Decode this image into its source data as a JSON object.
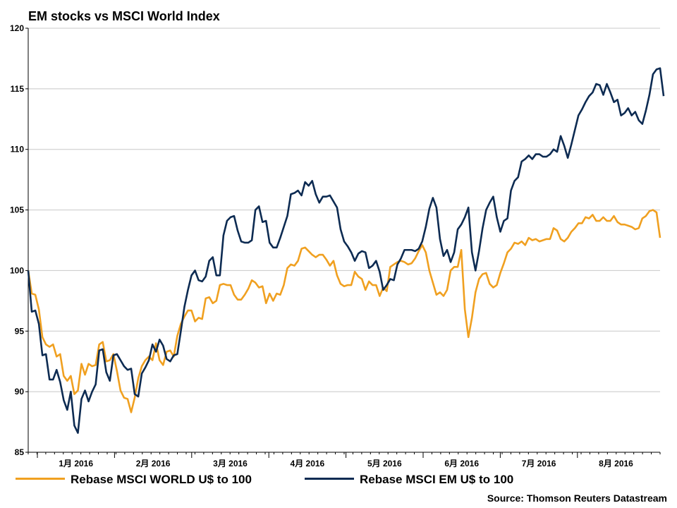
{
  "chart_data": {
    "type": "line",
    "title": "EM stocks vs MSCI World Index",
    "source": "Source: Thomson Reuters Datastream",
    "ylim": [
      85,
      120
    ],
    "yticks": [
      85,
      90,
      95,
      100,
      105,
      110,
      115,
      120
    ],
    "grid": true,
    "legend_position": "bottom",
    "x_tick_labels": [
      "1月 2016",
      "2月 2016",
      "3月 2016",
      "4月 2016",
      "5月 2016",
      "6月 2016",
      "7月 2016",
      "8月 2016"
    ],
    "colors": {
      "world": "#f0a020",
      "em": "#0d2b52"
    },
    "series": [
      {
        "name": "Rebase MSCI WORLD U$ to 100",
        "color": "#f0a020",
        "values": [
          100,
          98.1,
          98,
          96.8,
          94.5,
          93.9,
          93.7,
          93.9,
          92.9,
          93.1,
          91.3,
          90.9,
          91.3,
          89.8,
          90.1,
          92.3,
          91.4,
          92.3,
          92.1,
          92.2,
          93.9,
          94.1,
          92.5,
          92.6,
          93.1,
          91.7,
          90.1,
          89.5,
          89.4,
          88.3,
          89.5,
          91.1,
          92.1,
          92.6,
          92.9,
          92.6,
          94,
          92.6,
          92.2,
          93.3,
          93.4,
          92.9,
          94.6,
          95.6,
          96.2,
          96.7,
          96.7,
          95.8,
          96.1,
          96,
          97.7,
          97.8,
          97.3,
          97.5,
          98.8,
          98.9,
          98.8,
          98.8,
          98,
          97.6,
          97.6,
          98,
          98.5,
          99.2,
          99,
          98.6,
          98.7,
          97.3,
          98.1,
          97.5,
          98.1,
          98,
          98.8,
          100.2,
          100.5,
          100.4,
          100.8,
          101.8,
          101.9,
          101.6,
          101.3,
          101.1,
          101.3,
          101.3,
          100.9,
          100.4,
          100.8,
          99.6,
          98.9,
          98.7,
          98.8,
          98.8,
          99.9,
          99.5,
          99.3,
          98.4,
          99.1,
          98.8,
          98.8,
          97.9,
          98.6,
          98.3,
          100.3,
          100.5,
          100.7,
          100.8,
          100.7,
          100.5,
          100.6,
          101,
          101.6,
          102.1,
          101.5,
          100,
          99,
          98,
          98.2,
          97.9,
          98.4,
          100,
          100.3,
          100.3,
          101.7,
          96.8,
          94.5,
          96.1,
          98.2,
          99.3,
          99.7,
          99.8,
          98.9,
          98.6,
          98.8,
          99.8,
          100.6,
          101.5,
          101.8,
          102.3,
          102.2,
          102.4,
          102.1,
          102.7,
          102.5,
          102.6,
          102.4,
          102.5,
          102.6,
          102.6,
          103.5,
          103.3,
          102.6,
          102.4,
          102.7,
          103.2,
          103.5,
          103.9,
          103.9,
          104.4,
          104.3,
          104.6,
          104.1,
          104.1,
          104.4,
          104.1,
          104.1,
          104.5,
          104,
          103.8,
          103.8,
          103.7,
          103.6,
          103.4,
          103.5,
          104.3,
          104.5,
          104.9,
          105,
          104.8,
          102.7
        ]
      },
      {
        "name": "Rebase MSCI EM U$ to 100",
        "color": "#0d2b52",
        "values": [
          100,
          96.6,
          96.7,
          95.6,
          93,
          93.1,
          91,
          91,
          91.8,
          90.8,
          89.3,
          88.5,
          90,
          87.2,
          86.6,
          89.4,
          90.1,
          89.2,
          90,
          90.6,
          93.4,
          93.5,
          91.6,
          90.9,
          93,
          93.1,
          92.6,
          92.1,
          91.8,
          91.9,
          89.8,
          89.6,
          91.5,
          92,
          92.6,
          93.9,
          93.3,
          94.3,
          93.8,
          92.7,
          92.5,
          93,
          93.1,
          95,
          97,
          98.4,
          99.6,
          100,
          99.2,
          99.1,
          99.5,
          100.8,
          101.1,
          99.6,
          99.6,
          102.9,
          104.1,
          104.4,
          104.5,
          103.3,
          102.4,
          102.3,
          102.3,
          102.5,
          105,
          105.3,
          104,
          104.1,
          102.3,
          101.9,
          101.9,
          102.7,
          103.6,
          104.5,
          106.3,
          106.4,
          106.6,
          106.2,
          107.3,
          107,
          107.4,
          106.3,
          105.6,
          106.1,
          106.1,
          106.2,
          105.7,
          105.2,
          103.4,
          102.4,
          102,
          101.5,
          100.8,
          101.4,
          101.6,
          101.5,
          100.2,
          100.4,
          100.8,
          99.9,
          98.4,
          98.8,
          99.3,
          99.2,
          100.5,
          101,
          101.7,
          101.7,
          101.7,
          101.6,
          101.8,
          102.4,
          103.6,
          105.1,
          106,
          105.2,
          102.6,
          101.2,
          101.7,
          100.7,
          101.5,
          103.4,
          103.8,
          104.4,
          105.2,
          101.5,
          100,
          101.6,
          103.5,
          105,
          105.6,
          106.1,
          104.4,
          103.2,
          104.1,
          104.3,
          106.6,
          107.4,
          107.7,
          109,
          109.2,
          109.5,
          109.2,
          109.6,
          109.6,
          109.4,
          109.4,
          109.6,
          110,
          109.8,
          111.1,
          110.3,
          109.3,
          110.4,
          111.6,
          112.8,
          113.3,
          113.9,
          114.4,
          114.7,
          115.4,
          115.3,
          114.5,
          115.4,
          114.7,
          113.9,
          114.1,
          112.8,
          113,
          113.4,
          112.8,
          113.1,
          112.4,
          112.1,
          113.2,
          114.5,
          116.2,
          116.6,
          116.7,
          114.4
        ]
      }
    ]
  }
}
